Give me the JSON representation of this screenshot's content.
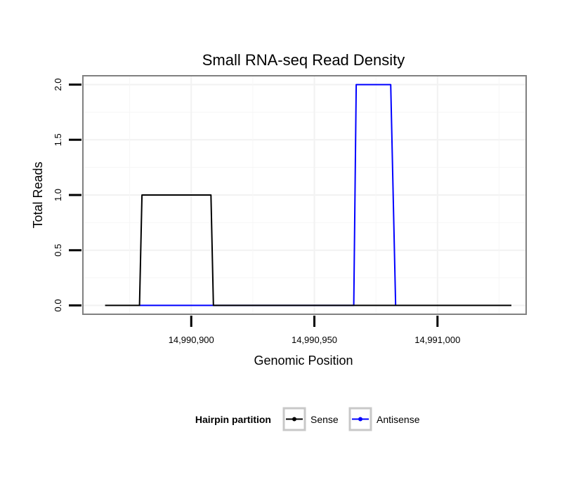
{
  "chart_data": {
    "type": "line",
    "title": "Small RNA-seq Read Density",
    "xlabel": "Genomic Position",
    "ylabel": "Total Reads",
    "xlim": [
      14990856,
      14991036
    ],
    "ylim": [
      -0.08,
      2.08
    ],
    "x_ticks": [
      {
        "value": 14990900,
        "label": "14,990,900"
      },
      {
        "value": 14990950,
        "label": "14,990,950"
      },
      {
        "value": 14991000,
        "label": "14,991,000"
      }
    ],
    "y_ticks": [
      {
        "value": 0.0,
        "label": "0.0"
      },
      {
        "value": 0.5,
        "label": "0.5"
      },
      {
        "value": 1.0,
        "label": "1.0"
      },
      {
        "value": 1.5,
        "label": "1.5"
      },
      {
        "value": 2.0,
        "label": "2.0"
      }
    ],
    "grid": true,
    "legend": {
      "title": "Hairpin partition",
      "position": "bottom"
    },
    "series": [
      {
        "name": "Sense",
        "color": "#000000",
        "x": [
          14990865,
          14990879,
          14990880,
          14990908,
          14990909,
          14991030
        ],
        "y": [
          0,
          0,
          1,
          1,
          0,
          0
        ]
      },
      {
        "name": "Antisense",
        "color": "#0000ff",
        "x": [
          14990879,
          14990909,
          14990966,
          14990967,
          14990981,
          14990983
        ],
        "y": [
          0,
          0,
          0,
          2,
          2,
          0
        ]
      }
    ]
  }
}
